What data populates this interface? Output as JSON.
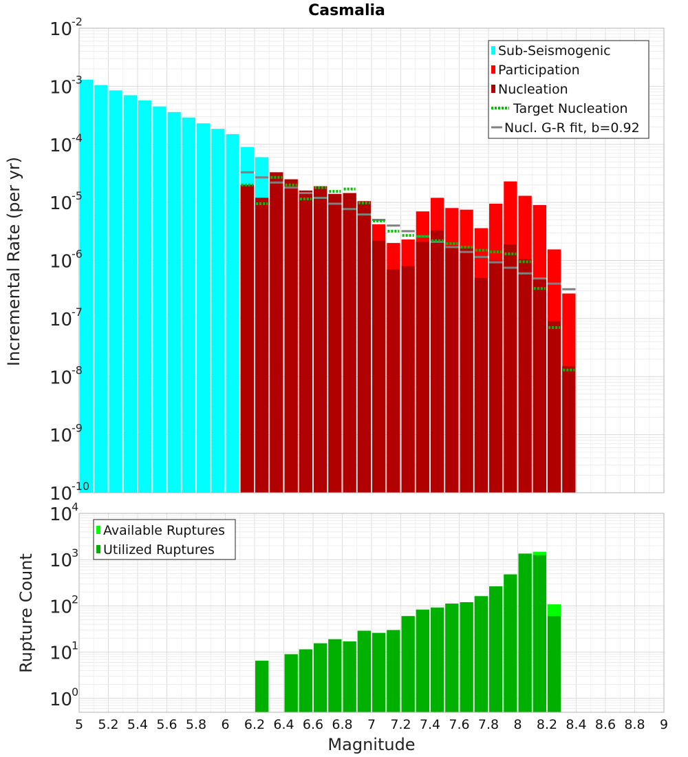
{
  "chart_data": [
    {
      "type": "bar",
      "title": "Casmalia",
      "xlabel": "",
      "ylabel": "Incremental Rate (per yr)",
      "xlim": [
        5,
        9
      ],
      "ylim": [
        1e-10,
        0.01
      ],
      "yscale": "log",
      "grid": true,
      "legend_position": "top-right",
      "y_tick_exponents": [
        "-10",
        "-9",
        "-8",
        "-7",
        "-6",
        "-5",
        "-4",
        "-3",
        "-2"
      ],
      "legend": [
        {
          "label": "Sub-Seismogenic",
          "color": "#00ffff",
          "style": "box"
        },
        {
          "label": "Participation",
          "color": "#ff0000",
          "style": "box"
        },
        {
          "label": "Nucleation",
          "color": "#b00000",
          "style": "box"
        },
        {
          "label": "Target Nucleation",
          "color": "#00c000",
          "style": "dotted-line"
        },
        {
          "label": "Nucl. G-R fit, b=0.92",
          "color": "#808080",
          "style": "line"
        }
      ],
      "series": [
        {
          "name": "Sub-Seismogenic",
          "color": "#00ffff",
          "x": [
            5.05,
            5.15,
            5.25,
            5.35,
            5.45,
            5.55,
            5.65,
            5.75,
            5.85,
            5.95,
            6.05,
            6.15,
            6.25
          ],
          "values": [
            0.0013,
            0.00105,
            0.00085,
            0.0007,
            0.00057,
            0.00045,
            0.00036,
            0.00029,
            0.00023,
            0.000185,
            0.00015,
            9e-05,
            6e-05
          ]
        },
        {
          "name": "Participation",
          "color": "#ff0000",
          "x": [
            6.15,
            6.25,
            6.35,
            6.45,
            6.55,
            6.65,
            6.75,
            6.85,
            6.95,
            7.05,
            7.15,
            7.25,
            7.35,
            7.45,
            7.55,
            7.65,
            7.75,
            7.85,
            7.95,
            8.05,
            8.15,
            8.25,
            8.35
          ],
          "values": [
            2e-05,
            1.2e-05,
            3.3e-05,
            2.5e-05,
            1.6e-05,
            1.9e-05,
            1.4e-05,
            1.45e-05,
            1.05e-05,
            4.2e-06,
            2e-06,
            2.3e-06,
            7e-06,
            1.2e-05,
            8e-06,
            7.5e-06,
            3.6e-06,
            9.5e-06,
            2.3e-05,
            1.3e-05,
            9e-06,
            1.55e-06,
            2.7e-07
          ]
        },
        {
          "name": "Nucleation",
          "color": "#b00000",
          "x": [
            6.15,
            6.25,
            6.35,
            6.45,
            6.55,
            6.65,
            6.75,
            6.85,
            6.95,
            7.05,
            7.15,
            7.25,
            7.35,
            7.45,
            7.55,
            7.65,
            7.75,
            7.85,
            7.95,
            8.05,
            8.15,
            8.25,
            8.35
          ],
          "values": [
            2e-05,
            1.2e-05,
            3.3e-05,
            2.5e-05,
            1.6e-05,
            1.9e-05,
            1.4e-05,
            1.45e-05,
            1.05e-05,
            2.2e-06,
            7e-07,
            8e-07,
            2.1e-06,
            3.3e-06,
            1.8e-06,
            1.6e-06,
            5e-07,
            1e-06,
            1.9e-06,
            1.05e-06,
            5e-07,
            9e-08,
            1.5e-08
          ]
        },
        {
          "name": "Target Nucleation",
          "color": "#00c000",
          "x": [
            6.15,
            6.25,
            6.35,
            6.45,
            6.55,
            6.65,
            6.75,
            6.85,
            6.95,
            7.05,
            7.15,
            7.25,
            7.35,
            7.45,
            7.55,
            7.65,
            7.75,
            7.85,
            7.95,
            8.05,
            8.15,
            8.25,
            8.35
          ],
          "values": [
            2e-05,
            9.5e-06,
            2.7e-05,
            2e-05,
            1.15e-05,
            1.8e-05,
            1.55e-05,
            1.7e-05,
            9.8e-06,
            4.8e-06,
            3.2e-06,
            2.7e-06,
            2.6e-06,
            2.2e-06,
            1.95e-06,
            1.7e-06,
            1.5e-06,
            1.4e-06,
            1.3e-06,
            9.5e-07,
            3.3e-07,
            7e-08,
            1.3e-08
          ]
        },
        {
          "name": "Nucl. G-R fit, b=0.92",
          "color": "#808080",
          "x": [
            6.15,
            6.25,
            6.35,
            6.45,
            6.55,
            6.65,
            6.75,
            6.85,
            6.95,
            7.05,
            7.15,
            7.25,
            7.35,
            7.45,
            7.55,
            7.65,
            7.75,
            7.85,
            7.95,
            8.05,
            8.15,
            8.25,
            8.35
          ],
          "values": [
            3.3e-05,
            2.7e-05,
            2.2e-05,
            1.8e-05,
            1.45e-05,
            1.2e-05,
            9.5e-06,
            7.7e-06,
            6.2e-06,
            5e-06,
            4e-06,
            3.2e-06,
            2.6e-06,
            2.1e-06,
            1.7e-06,
            1.4e-06,
            1.15e-06,
            9.3e-07,
            7.5e-07,
            6e-07,
            4.9e-07,
            4e-07,
            3.2e-07
          ]
        }
      ]
    },
    {
      "type": "bar",
      "title": "",
      "xlabel": "Magnitude",
      "ylabel": "Rupture Count",
      "xlim": [
        5,
        9
      ],
      "ylim": [
        0.5,
        10000.0
      ],
      "yscale": "log",
      "grid": true,
      "legend_position": "top-left",
      "y_tick_exponents": [
        "0",
        "1",
        "2",
        "3",
        "4"
      ],
      "x_ticks": [
        "5",
        "5.2",
        "5.4",
        "5.6",
        "5.8",
        "6",
        "6.2",
        "6.4",
        "6.6",
        "6.8",
        "7",
        "7.2",
        "7.4",
        "7.6",
        "7.8",
        "8",
        "8.2",
        "8.4",
        "8.6",
        "8.8",
        "9"
      ],
      "legend": [
        {
          "label": "Available Ruptures",
          "color": "#00ff00",
          "style": "box"
        },
        {
          "label": "Utilized Ruptures",
          "color": "#00b000",
          "style": "box"
        }
      ],
      "series": [
        {
          "name": "Available Ruptures",
          "color": "#00ff00",
          "x": [
            6.25,
            6.45,
            6.55,
            6.65,
            6.75,
            6.85,
            6.95,
            7.05,
            7.15,
            7.25,
            7.35,
            7.45,
            7.55,
            7.65,
            7.75,
            7.85,
            7.95,
            8.05,
            8.15,
            8.25
          ],
          "values": [
            6.5,
            9,
            11.5,
            15.5,
            19,
            17,
            29,
            26,
            30,
            60,
            83,
            92,
            112,
            120,
            162,
            265,
            480,
            1350,
            1480,
            108
          ]
        },
        {
          "name": "Utilized Ruptures",
          "color": "#00b000",
          "x": [
            6.25,
            6.45,
            6.55,
            6.65,
            6.75,
            6.85,
            6.95,
            7.05,
            7.15,
            7.25,
            7.35,
            7.45,
            7.55,
            7.65,
            7.75,
            7.85,
            7.95,
            8.05,
            8.15,
            8.25
          ],
          "values": [
            6.5,
            9,
            11.5,
            15.5,
            19,
            17,
            29,
            26,
            30,
            60,
            83,
            92,
            112,
            120,
            162,
            265,
            480,
            1350,
            1250,
            60
          ]
        }
      ]
    }
  ]
}
